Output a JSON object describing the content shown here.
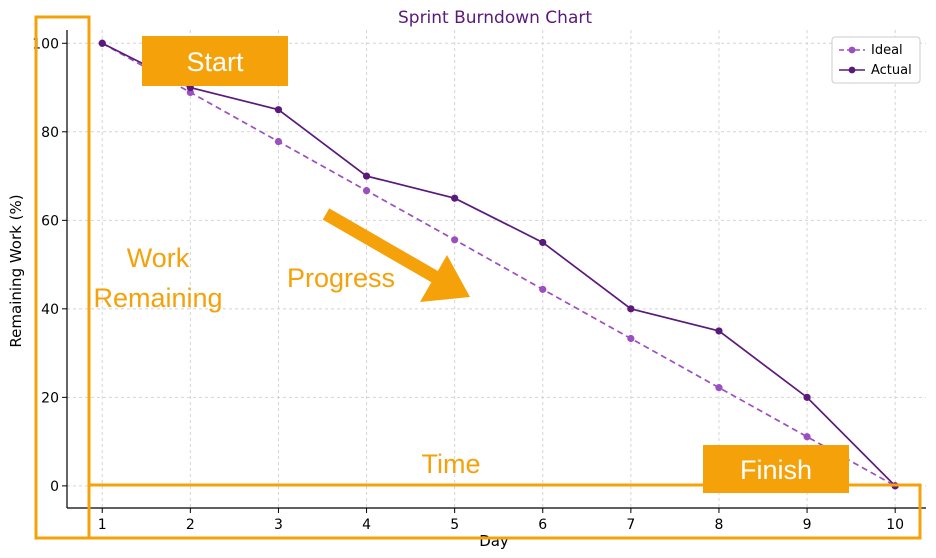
{
  "chart_data": {
    "type": "line",
    "title": "Sprint Burndown Chart",
    "xlabel": "Day",
    "ylabel": "Remaining Work (%)",
    "x": [
      1,
      2,
      3,
      4,
      5,
      6,
      7,
      8,
      9,
      10
    ],
    "xlim": [
      0.6,
      10.35
    ],
    "ylim": [
      -5,
      103
    ],
    "yticks": [
      0,
      20,
      40,
      60,
      80,
      100
    ],
    "grid": true,
    "legend": "top-right",
    "series": [
      {
        "name": "Ideal",
        "values": [
          100,
          88.9,
          77.8,
          66.7,
          55.6,
          44.4,
          33.3,
          22.2,
          11.1,
          0
        ],
        "color": "#9b4fc0",
        "style": "dashed"
      },
      {
        "name": "Actual",
        "values": [
          100,
          90,
          85,
          70,
          65,
          55,
          40,
          35,
          20,
          0
        ],
        "color": "#5a1a7a",
        "style": "solid"
      }
    ],
    "annotations": {
      "start": "Start",
      "finish": "Finish",
      "work": "Work",
      "remaining": "Remaining",
      "progress": "Progress",
      "time": "Time"
    },
    "annotation_color": "#f5a10a"
  }
}
